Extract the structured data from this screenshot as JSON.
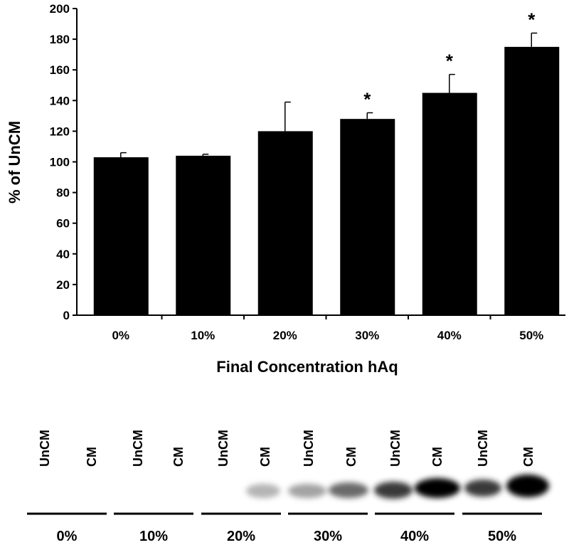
{
  "chart_data": {
    "type": "bar",
    "x_label": "Final Concentration hAq",
    "y_label": "% of UnCM",
    "categories": [
      "0%",
      "10%",
      "20%",
      "30%",
      "40%",
      "50%"
    ],
    "values": [
      103,
      104,
      120,
      128,
      145,
      175
    ],
    "errors": [
      3,
      1,
      19,
      4,
      12,
      9
    ],
    "significance": [
      null,
      null,
      null,
      "*",
      "*",
      "*"
    ],
    "color": "#000000",
    "ylim": [
      0,
      200
    ],
    "yticks": [
      0,
      20,
      40,
      60,
      80,
      100,
      120,
      140,
      160,
      180,
      200
    ]
  },
  "blot": {
    "groups": [
      {
        "label": "0%",
        "lanes": [
          "UnCM",
          "CM"
        ]
      },
      {
        "label": "10%",
        "lanes": [
          "UnCM",
          "CM"
        ]
      },
      {
        "label": "20%",
        "lanes": [
          "UnCM",
          "CM"
        ]
      },
      {
        "label": "30%",
        "lanes": [
          "UnCM",
          "CM"
        ]
      },
      {
        "label": "40%",
        "lanes": [
          "UnCM",
          "CM"
        ]
      },
      {
        "label": "50%",
        "lanes": [
          "UnCM",
          "CM"
        ]
      }
    ]
  }
}
